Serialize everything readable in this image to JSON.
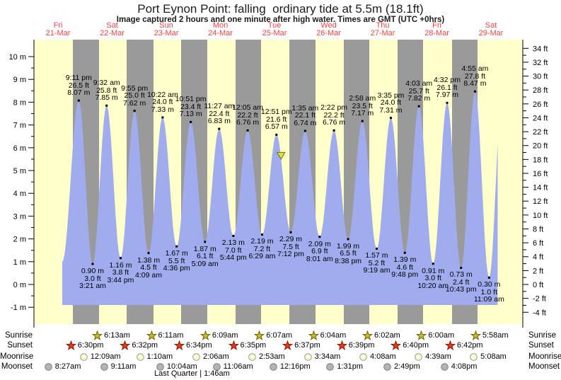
{
  "title": "Port Eynon Point: falling  ordinary tide at 5.5m (18.1ft)",
  "subtitle": "Image captured 2 hours and one minute after high water. Times are GMT (UTC +0hrs)",
  "colors": {
    "plot_day": "#ffffcc",
    "plot_night": "#9a9a9a",
    "tide_fill": "#a0acee",
    "day_label": "#ff4141",
    "sunrise_star": "#c9b832",
    "sunrise_star_edge": "#6f6400",
    "sunset_star": "#e53916",
    "sunset_star_edge": "#8c1b05",
    "moonrise_fill": "#ffffd6",
    "moonrise_edge": "#9a9a9a",
    "moonset_fill": "#b4b4b4",
    "moonset_edge": "#7d7d7d",
    "marker_fill": "#e2e242",
    "marker_edge": "#6b6b00"
  },
  "chart_data": {
    "type": "area",
    "title": "Port Eynon Point: falling  ordinary tide at 5.5m (18.1ft)",
    "y_axis_left": {
      "unit": "m",
      "min": -1,
      "max": 10,
      "step": 1
    },
    "y_axis_right": {
      "unit": "ft",
      "min": -4,
      "max": 34,
      "step": 2
    },
    "days": [
      {
        "name": "Fri",
        "date": "21-Mar"
      },
      {
        "name": "Sat",
        "date": "22-Mar"
      },
      {
        "name": "Sun",
        "date": "23-Mar"
      },
      {
        "name": "Mon",
        "date": "24-Mar"
      },
      {
        "name": "Tue",
        "date": "25-Mar"
      },
      {
        "name": "Wed",
        "date": "26-Mar"
      },
      {
        "name": "Thu",
        "date": "27-Mar"
      },
      {
        "name": "Fri",
        "date": "28-Mar"
      },
      {
        "name": "Sat",
        "date": "29-Mar"
      }
    ],
    "events": [
      {
        "type": "high",
        "day": 0,
        "time24": "21:11",
        "time_label": "9:11 pm",
        "ft": "26.5",
        "m": "8.07"
      },
      {
        "type": "low",
        "day": 1,
        "time24": "03:21",
        "time_label": "3:21 am",
        "ft": "3.0",
        "m": "0.90"
      },
      {
        "type": "high",
        "day": 1,
        "time24": "09:32",
        "time_label": "9:32 am",
        "ft": "25.8",
        "m": "7.85"
      },
      {
        "type": "low",
        "day": 1,
        "time24": "15:44",
        "time_label": "3:44 pm",
        "ft": "3.8",
        "m": "1.16"
      },
      {
        "type": "high",
        "day": 1,
        "time24": "21:55",
        "time_label": "9:55 pm",
        "ft": "25.0",
        "m": "7.62"
      },
      {
        "type": "low",
        "day": 2,
        "time24": "04:09",
        "time_label": "4:09 am",
        "ft": "4.5",
        "m": "1.38"
      },
      {
        "type": "high",
        "day": 2,
        "time24": "10:22",
        "time_label": "10:22 am",
        "ft": "24.0",
        "m": "7.33"
      },
      {
        "type": "low",
        "day": 2,
        "time24": "16:36",
        "time_label": "4:36 pm",
        "ft": "5.5",
        "m": "1.67"
      },
      {
        "type": "high",
        "day": 2,
        "time24": "22:51",
        "time_label": "10:51 pm",
        "ft": "23.4",
        "m": "7.13"
      },
      {
        "type": "low",
        "day": 3,
        "time24": "05:09",
        "time_label": "5:09 am",
        "ft": "6.1",
        "m": "1.87"
      },
      {
        "type": "high",
        "day": 3,
        "time24": "11:27",
        "time_label": "11:27 am",
        "ft": "22.4",
        "m": "6.83"
      },
      {
        "type": "low",
        "day": 3,
        "time24": "17:44",
        "time_label": "5:44 pm",
        "ft": "7.0",
        "m": "2.13"
      },
      {
        "type": "high",
        "day": 4,
        "time24": "00:05",
        "time_label": "12:05 am",
        "ft": "22.2",
        "m": "6.76"
      },
      {
        "type": "low",
        "day": 4,
        "time24": "06:29",
        "time_label": "6:29 am",
        "ft": "7.2",
        "m": "2.19"
      },
      {
        "type": "high",
        "day": 4,
        "time24": "12:51",
        "time_label": "12:51 pm",
        "ft": "21.6",
        "m": "6.57"
      },
      {
        "type": "low",
        "day": 4,
        "time24": "19:12",
        "time_label": "7:12 pm",
        "ft": "7.5",
        "m": "2.29"
      },
      {
        "type": "high",
        "day": 5,
        "time24": "01:35",
        "time_label": "1:35 am",
        "ft": "22.1",
        "m": "6.74"
      },
      {
        "type": "low",
        "day": 5,
        "time24": "08:01",
        "time_label": "8:01 am",
        "ft": "6.9",
        "m": "2.09"
      },
      {
        "type": "high",
        "day": 5,
        "time24": "14:22",
        "time_label": "2:22 pm",
        "ft": "22.2",
        "m": "6.76"
      },
      {
        "type": "low",
        "day": 5,
        "time24": "20:38",
        "time_label": "8:38 pm",
        "ft": "6.5",
        "m": "1.99"
      },
      {
        "type": "high",
        "day": 6,
        "time24": "02:58",
        "time_label": "2:58 am",
        "ft": "23.5",
        "m": "7.17"
      },
      {
        "type": "low",
        "day": 6,
        "time24": "09:19",
        "time_label": "9:19 am",
        "ft": "5.2",
        "m": "1.57"
      },
      {
        "type": "high",
        "day": 6,
        "time24": "15:35",
        "time_label": "3:35 pm",
        "ft": "24.0",
        "m": "7.31"
      },
      {
        "type": "low",
        "day": 6,
        "time24": "21:48",
        "time_label": "9:48 pm",
        "ft": "4.6",
        "m": "1.39"
      },
      {
        "type": "high",
        "day": 7,
        "time24": "04:03",
        "time_label": "4:03 am",
        "ft": "25.7",
        "m": "7.82"
      },
      {
        "type": "low",
        "day": 7,
        "time24": "10:20",
        "time_label": "10:20 am",
        "ft": "3.0",
        "m": "0.91"
      },
      {
        "type": "high",
        "day": 7,
        "time24": "16:32",
        "time_label": "4:32 pm",
        "ft": "26.1",
        "m": "7.97"
      },
      {
        "type": "low",
        "day": 7,
        "time24": "22:43",
        "time_label": "10:43 pm",
        "ft": "2.4",
        "m": "0.73"
      },
      {
        "type": "high",
        "day": 8,
        "time24": "04:55",
        "time_label": "4:55 am",
        "ft": "27.8",
        "m": "8.47"
      },
      {
        "type": "low",
        "day": 8,
        "time24": "11:09",
        "time_label": "11:09 am",
        "ft": "1.0",
        "m": "0.30"
      }
    ],
    "curve": {
      "start": {
        "day": 0,
        "time24": "13:52",
        "m": 1.0
      },
      "end_peak": {
        "day": 8,
        "time24": "17:15",
        "m": 8.9
      },
      "cut_m": 5.5,
      "base_m": -0.9
    },
    "marker": {
      "day": 4,
      "time24": "14:52",
      "m": 5.5
    }
  },
  "astro": {
    "sunrise": {
      "label": "Sunrise",
      "entries": [
        {
          "day": 1,
          "time": "6:13am"
        },
        {
          "day": 2,
          "time": "6:11am"
        },
        {
          "day": 3,
          "time": "6:09am"
        },
        {
          "day": 4,
          "time": "6:07am"
        },
        {
          "day": 5,
          "time": "6:04am"
        },
        {
          "day": 6,
          "time": "6:02am"
        },
        {
          "day": 7,
          "time": "6:00am"
        },
        {
          "day": 8,
          "time": "5:58am"
        }
      ]
    },
    "sunset": {
      "label": "Sunset",
      "entries": [
        {
          "day": 0,
          "time": "6:30pm"
        },
        {
          "day": 1,
          "time": "6:32pm"
        },
        {
          "day": 2,
          "time": "6:34pm"
        },
        {
          "day": 3,
          "time": "6:35pm"
        },
        {
          "day": 4,
          "time": "6:37pm"
        },
        {
          "day": 5,
          "time": "6:39pm"
        },
        {
          "day": 6,
          "time": "6:40pm"
        },
        {
          "day": 7,
          "time": "6:42pm"
        }
      ]
    },
    "moonrise": {
      "label": "Moonrise",
      "entries": [
        {
          "day": 1,
          "time": "12:09am"
        },
        {
          "day": 2,
          "time": "1:10am"
        },
        {
          "day": 3,
          "time": "2:06am"
        },
        {
          "day": 4,
          "time": "2:53am"
        },
        {
          "day": 5,
          "time": "3:34am"
        },
        {
          "day": 6,
          "time": "4:08am"
        },
        {
          "day": 7,
          "time": "4:39am"
        },
        {
          "day": 8,
          "time": "5:08am"
        }
      ]
    },
    "moonset": {
      "label": "Moonset",
      "entries": [
        {
          "day": 0,
          "time": "8:27am"
        },
        {
          "day": 1,
          "time": "9:11am"
        },
        {
          "day": 2,
          "time": "10:04am"
        },
        {
          "day": 3,
          "time": "11:06am"
        },
        {
          "day": 4,
          "time": "12:16pm"
        },
        {
          "day": 5,
          "time": "1:31pm"
        },
        {
          "day": 6,
          "time": "2:49pm"
        },
        {
          "day": 7,
          "time": "4:08pm"
        }
      ]
    },
    "moon_phase": "Last Quarter | 1:46am"
  }
}
